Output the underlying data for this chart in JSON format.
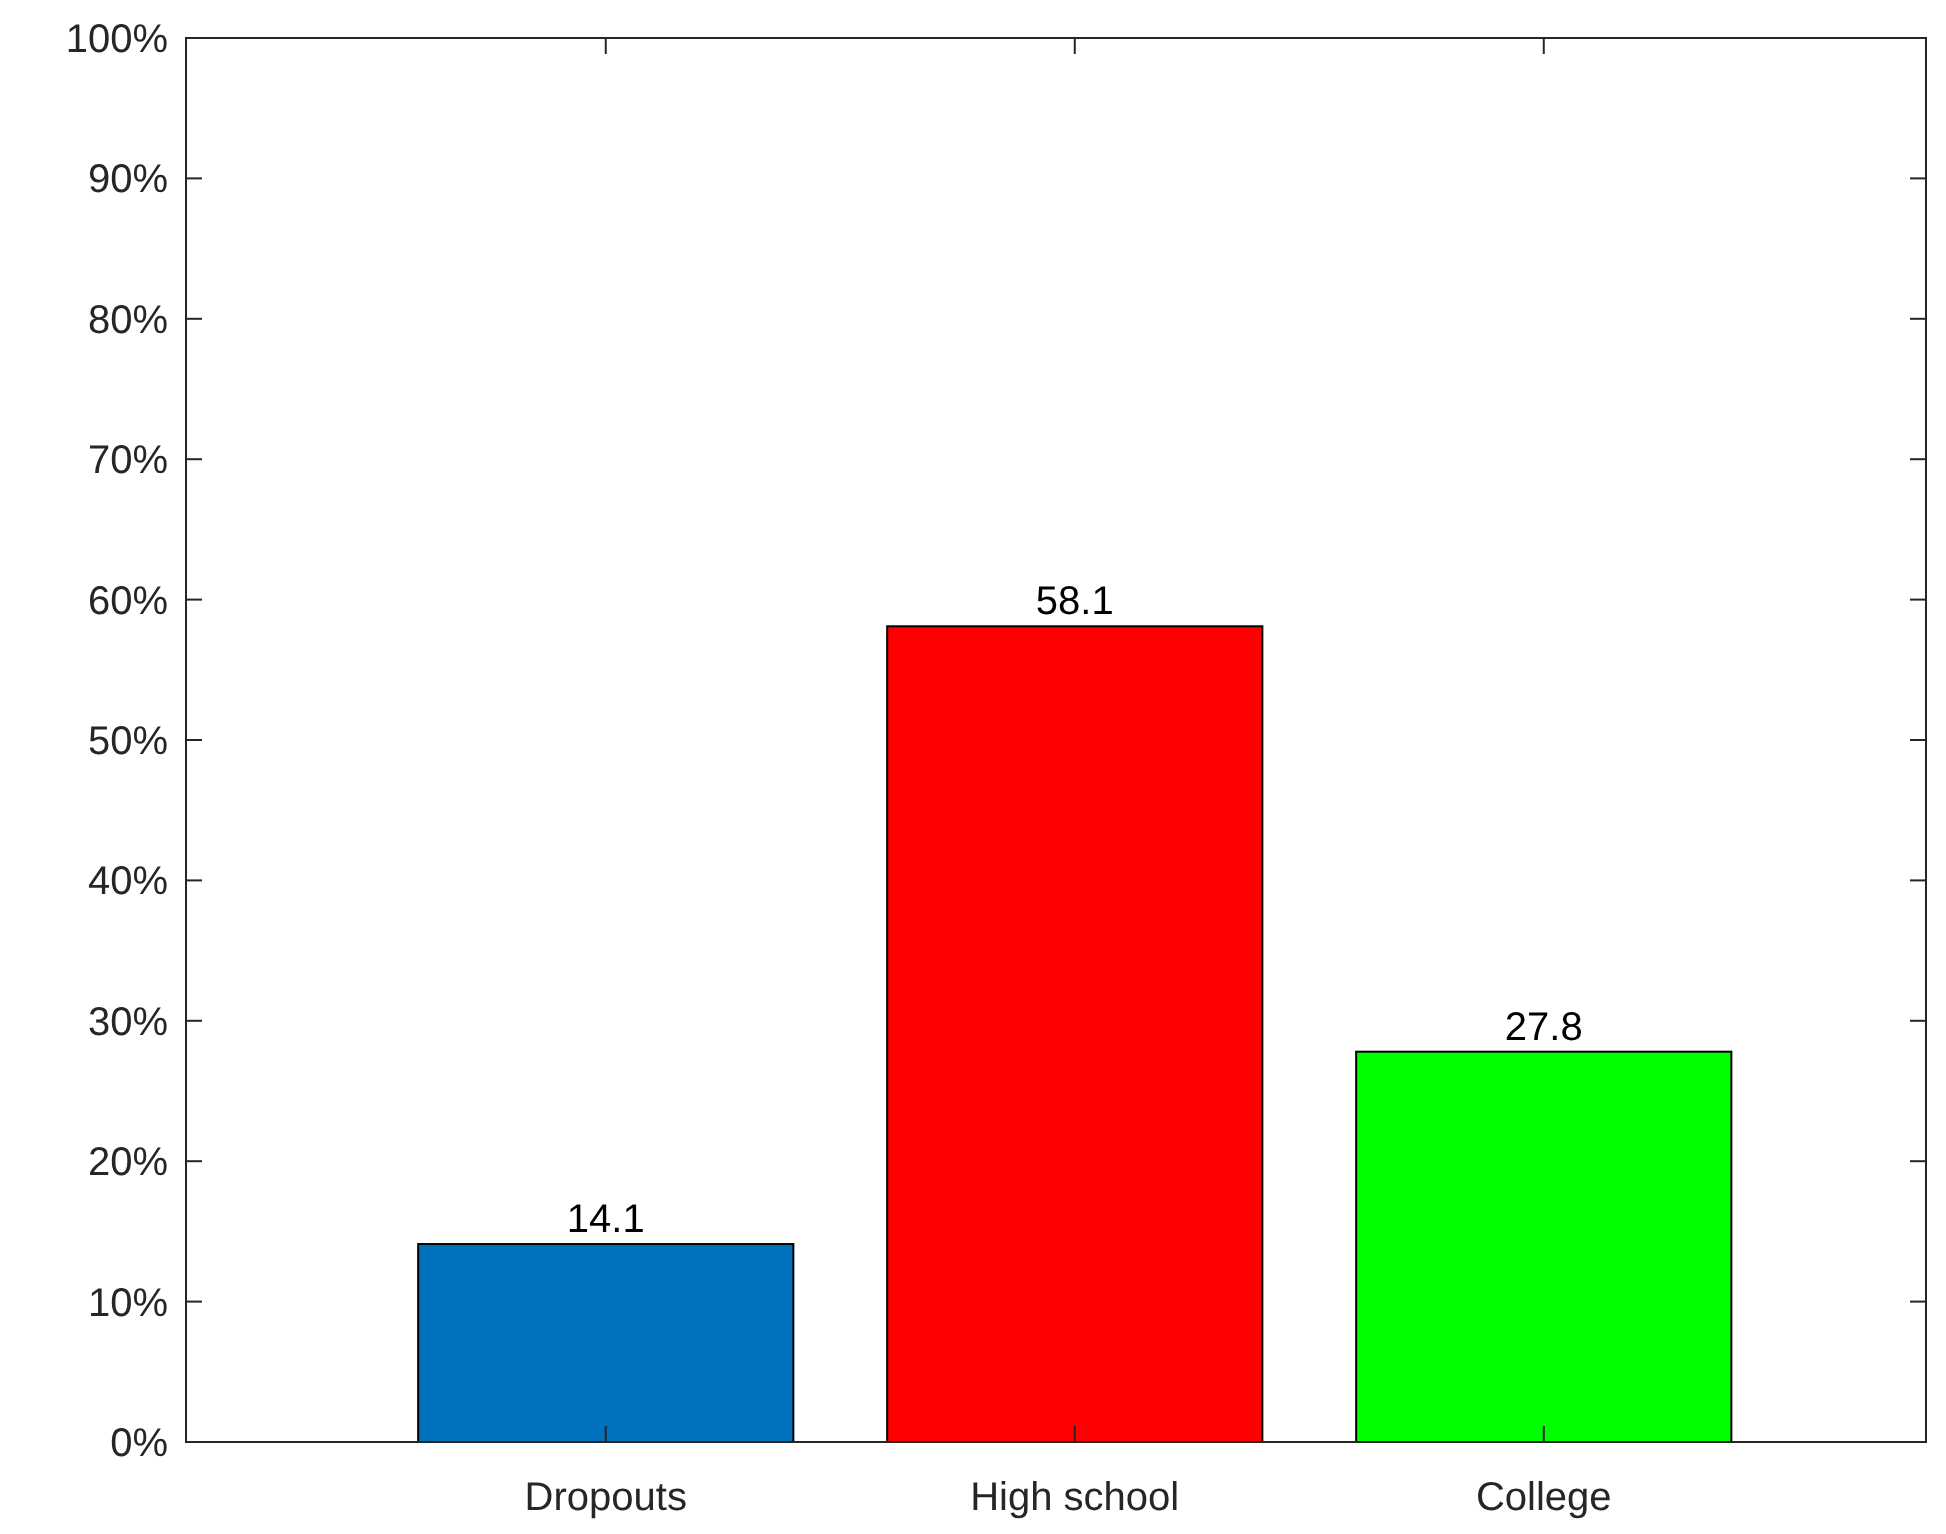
{
  "chart_data": {
    "type": "bar",
    "categories": [
      "Dropouts",
      "High school",
      "College"
    ],
    "values": [
      14.1,
      58.1,
      27.8
    ],
    "colors": [
      "#0072bd",
      "#ff0000",
      "#00ff00"
    ],
    "ylim": [
      0,
      100
    ],
    "yticks": [
      {
        "value": 0,
        "label": "0%"
      },
      {
        "value": 10,
        "label": "10%"
      },
      {
        "value": 20,
        "label": "20%"
      },
      {
        "value": 30,
        "label": "30%"
      },
      {
        "value": 40,
        "label": "40%"
      },
      {
        "value": 50,
        "label": "50%"
      },
      {
        "value": 60,
        "label": "60%"
      },
      {
        "value": 70,
        "label": "70%"
      },
      {
        "value": 80,
        "label": "80%"
      },
      {
        "value": 90,
        "label": "90%"
      },
      {
        "value": 100,
        "label": "100%"
      }
    ],
    "data_labels": true
  }
}
